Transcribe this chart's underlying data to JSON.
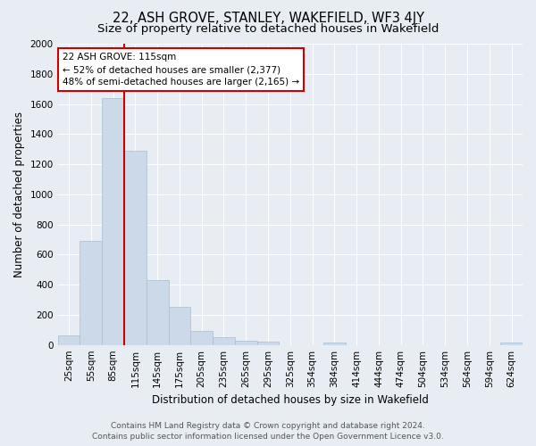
{
  "title": "22, ASH GROVE, STANLEY, WAKEFIELD, WF3 4JY",
  "subtitle": "Size of property relative to detached houses in Wakefield",
  "xlabel": "Distribution of detached houses by size in Wakefield",
  "ylabel": "Number of detached properties",
  "bar_labels": [
    "25sqm",
    "55sqm",
    "85sqm",
    "115sqm",
    "145sqm",
    "175sqm",
    "205sqm",
    "235sqm",
    "265sqm",
    "295sqm",
    "325sqm",
    "354sqm",
    "384sqm",
    "414sqm",
    "444sqm",
    "474sqm",
    "504sqm",
    "534sqm",
    "564sqm",
    "594sqm",
    "624sqm"
  ],
  "bar_values": [
    65,
    690,
    1640,
    1290,
    430,
    255,
    90,
    50,
    30,
    20,
    0,
    0,
    15,
    0,
    0,
    0,
    0,
    0,
    0,
    0,
    15
  ],
  "bar_color": "#ccd9e8",
  "bar_edgecolor": "#aabdd4",
  "vline_x_index": 3,
  "vline_color": "#cc0000",
  "annotation_line1": "22 ASH GROVE: 115sqm",
  "annotation_line2": "← 52% of detached houses are smaller (2,377)",
  "annotation_line3": "48% of semi-detached houses are larger (2,165) →",
  "annotation_box_color": "#ffffff",
  "annotation_box_edgecolor": "#cc0000",
  "ylim": [
    0,
    2000
  ],
  "yticks": [
    0,
    200,
    400,
    600,
    800,
    1000,
    1200,
    1400,
    1600,
    1800,
    2000
  ],
  "background_color": "#e8edf3",
  "plot_background": "#e8edf3",
  "grid_color": "#ffffff",
  "footer_line1": "Contains HM Land Registry data © Crown copyright and database right 2024.",
  "footer_line2": "Contains public sector information licensed under the Open Government Licence v3.0.",
  "title_fontsize": 10.5,
  "subtitle_fontsize": 9.5,
  "xlabel_fontsize": 8.5,
  "ylabel_fontsize": 8.5,
  "tick_fontsize": 7.5,
  "annotation_fontsize": 7.5,
  "footer_fontsize": 6.5
}
